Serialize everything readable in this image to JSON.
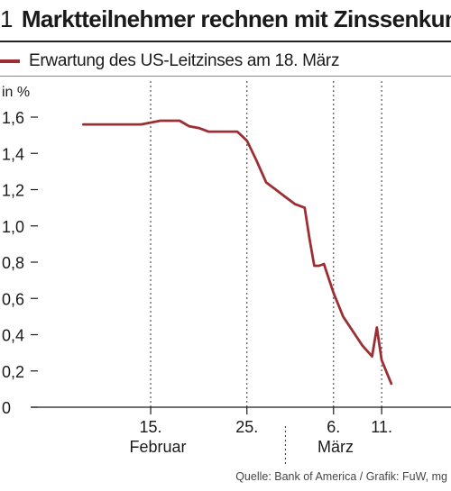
{
  "header": {
    "number": "1",
    "title": "Marktteilnehmer rechnen mit Zinssenkung"
  },
  "source": "Quelle: Bank of America / Grafik: FuW, mg",
  "chart_data": {
    "type": "line",
    "title": "Marktteilnehmer rechnen mit Zinssenkung",
    "ylabel": "in %",
    "xlabel": "",
    "ylim": [
      0,
      1.6
    ],
    "yticks": [
      0,
      0.2,
      0.4,
      0.6,
      0.8,
      1.0,
      1.2,
      1.4,
      1.6
    ],
    "ytick_labels": [
      "0",
      "0,2",
      "0,4",
      "0,6",
      "0,8",
      "1,0",
      "1,2",
      "1,4",
      "1,6"
    ],
    "grid": "vertical dashed",
    "legend": "top-left",
    "colors": {
      "series": "#9b2f33"
    },
    "x_ticks": [
      {
        "day": 15,
        "label": "15."
      },
      {
        "day": 25,
        "label": "25."
      },
      {
        "day": 34,
        "label": "6."
      },
      {
        "day": 39,
        "label": "11."
      }
    ],
    "x_groups": [
      {
        "label": "Februar",
        "from": 0,
        "to": 29
      },
      {
        "label": "März",
        "from": 29,
        "to": 42
      }
    ],
    "series": [
      {
        "name": "Erwartung des US-Leitzinses am 18. März",
        "x": [
          8,
          11,
          14,
          16,
          18,
          19,
          20,
          21,
          23,
          24,
          25,
          26,
          27,
          28,
          29,
          30,
          31,
          31.5,
          32,
          32.5,
          33,
          34,
          35,
          36,
          37,
          38,
          38.5,
          39,
          40
        ],
        "values": [
          1.56,
          1.56,
          1.56,
          1.58,
          1.58,
          1.55,
          1.54,
          1.52,
          1.52,
          1.52,
          1.47,
          1.36,
          1.24,
          1.2,
          1.16,
          1.12,
          1.1,
          0.93,
          0.78,
          0.78,
          0.79,
          0.63,
          0.5,
          0.42,
          0.34,
          0.28,
          0.44,
          0.26,
          0.13
        ]
      }
    ]
  }
}
